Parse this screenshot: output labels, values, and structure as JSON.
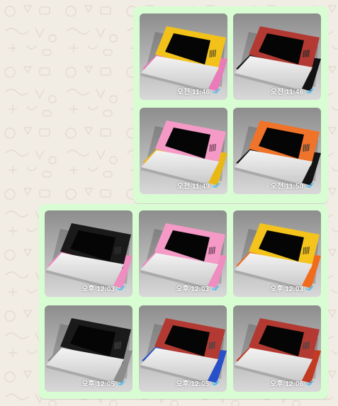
{
  "colors": {
    "chat_background": "#f1ece4",
    "bubble_outgoing": "#d9fdd3",
    "read_check": "#53bdeb"
  },
  "icons": {
    "timestamp_status": "double-check-read-icon"
  },
  "messages": [
    {
      "images": [
        {
          "time": "오전 11:46",
          "device": {
            "frame": "#f2c21b",
            "base": "#e97bb8",
            "screen": "#050505",
            "speaker": "#5b4a20"
          }
        },
        {
          "time": "오전 11:46",
          "device": {
            "frame": "#b23a32",
            "base": "#121212",
            "screen": "#050505",
            "speaker": "#2a2a2a"
          }
        },
        {
          "time": "오전 11:49",
          "device": {
            "frame": "#f59ac6",
            "base": "#e8b916",
            "screen": "#050505",
            "speaker": "#6b3d52"
          }
        },
        {
          "time": "오전 11:50",
          "device": {
            "frame": "#f0732a",
            "base": "#141414",
            "screen": "#050505",
            "speaker": "#3a3a3a"
          }
        }
      ]
    },
    {
      "images": [
        {
          "time": "오후 12:03",
          "device": {
            "frame": "#1a1a1a",
            "base": "#ef8cc0",
            "screen": "#050505",
            "speaker": "#333333"
          }
        },
        {
          "time": "오후 12:03",
          "device": {
            "frame": "#f59ac6",
            "base": "#ef8cc0",
            "screen": "#050505",
            "speaker": "#6b3d52"
          }
        },
        {
          "time": "오후 12:03",
          "device": {
            "frame": "#f4c41d",
            "base": "#f06c1c",
            "screen": "#050505",
            "speaker": "#5b4a20"
          }
        },
        {
          "time": "오후 12:05",
          "device": {
            "frame": "#1a1a1a",
            "base": "#8c8c8c",
            "screen": "#050505",
            "speaker": "#444444"
          }
        },
        {
          "time": "오후 12:05",
          "device": {
            "frame": "#b23a32",
            "base": "#2850c8",
            "screen": "#050505",
            "speaker": "#444444"
          }
        },
        {
          "time": "오후 12:06",
          "device": {
            "frame": "#b23a32",
            "base": "#c33a22",
            "screen": "#050505",
            "speaker": "#444444"
          }
        }
      ]
    }
  ]
}
